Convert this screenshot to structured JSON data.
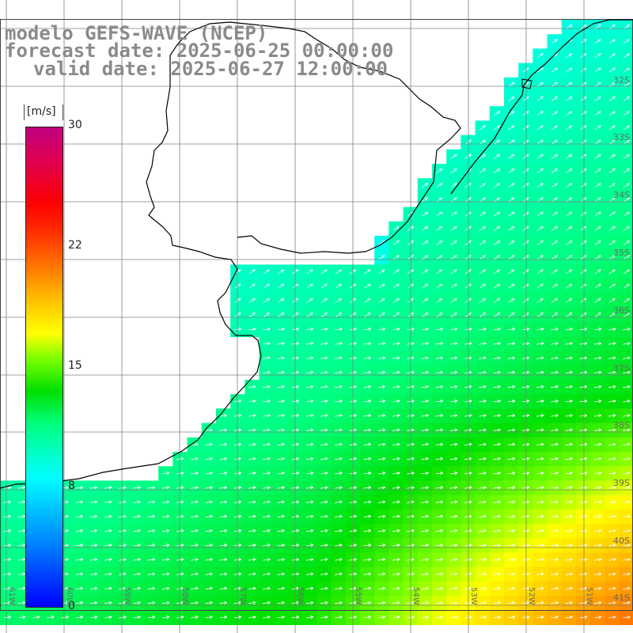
{
  "title": {
    "line1": "modelo GEFS-WAVE (NCEP)",
    "line2": "forecast date: 2025-06-25 00:00:00",
    "line3": "valid date: 2025-06-27 12:00:00"
  },
  "colorbar": {
    "unit": "[m/s]",
    "ticks": [
      "30",
      "22",
      "15",
      "8",
      "0"
    ],
    "colors": [
      "#0000ff",
      "#0080ff",
      "#00ffff",
      "#00ff80",
      "#00e000",
      "#ffff00",
      "#ff8000",
      "#ff0000",
      "#c00080"
    ]
  },
  "lat_labels": [
    "32S",
    "33S",
    "34S",
    "35S",
    "36S",
    "37S",
    "38S",
    "39S",
    "40S",
    "41S"
  ],
  "lon_labels": [
    "61W",
    "60W",
    "59W",
    "58W",
    "57W",
    "56W",
    "55W",
    "54W",
    "53W",
    "52W",
    "51W"
  ],
  "land_color": "#ffffff",
  "grid_color": "#808080",
  "coast_color": "#000000",
  "arrow_color": "#ffffff"
}
